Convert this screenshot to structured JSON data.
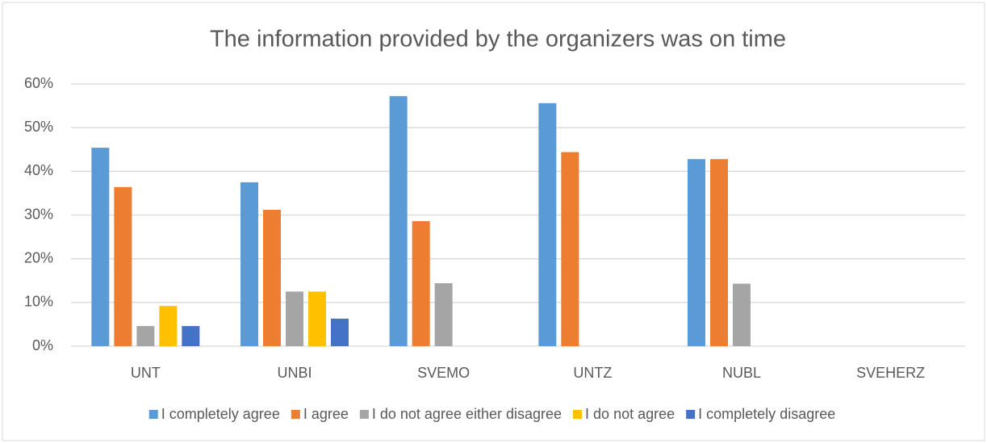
{
  "chart_data": {
    "type": "bar",
    "title": "The information provided by the organizers was on time",
    "categories": [
      "UNT",
      "UNBI",
      "SVEMO",
      "UNTZ",
      "NUBL",
      "SVEHERZ"
    ],
    "series": [
      {
        "name": "I completely agree",
        "color": "#5b9bd5",
        "values": [
          45.4,
          37.5,
          57.2,
          55.6,
          42.8,
          0
        ]
      },
      {
        "name": "I agree",
        "color": "#ed7d31",
        "values": [
          36.4,
          31.2,
          28.6,
          44.4,
          42.8,
          0
        ]
      },
      {
        "name": "I do not agree either disagree",
        "color": "#a5a5a5",
        "values": [
          4.6,
          12.5,
          14.4,
          0,
          14.3,
          0
        ]
      },
      {
        "name": "I do not agree",
        "color": "#ffc000",
        "values": [
          9.2,
          12.5,
          0,
          0,
          0,
          0
        ]
      },
      {
        "name": "I completely disagree",
        "color": "#4472c4",
        "values": [
          4.6,
          6.3,
          0,
          0,
          0,
          0
        ]
      }
    ],
    "ylim": [
      0,
      60
    ],
    "yticks": [
      {
        "value": 0,
        "label": "0%"
      },
      {
        "value": 10,
        "label": "10%"
      },
      {
        "value": 20,
        "label": "20%"
      },
      {
        "value": 30,
        "label": "30%"
      },
      {
        "value": 40,
        "label": "40%"
      },
      {
        "value": 50,
        "label": "50%"
      },
      {
        "value": 60,
        "label": "60%"
      }
    ],
    "grid": true,
    "legend": "bottom"
  }
}
